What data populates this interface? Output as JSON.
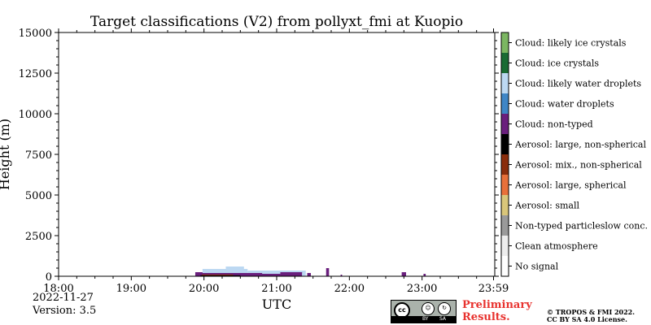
{
  "chart_data": {
    "type": "heatmap",
    "title": "Target classifications (V2) from pollyxt_fmi at Kuopio",
    "xlabel": "UTC",
    "ylabel": "Height (m)",
    "x_ticks": [
      "18:00",
      "19:00",
      "20:00",
      "21:00",
      "22:00",
      "23:00",
      "23:59"
    ],
    "y_ticks": [
      0,
      2500,
      5000,
      7500,
      10000,
      12500,
      15000
    ],
    "ylim": [
      0,
      15000
    ],
    "xlim_hours": [
      18.0,
      24.0
    ],
    "colorbar": [
      {
        "label": "Cloud: likely ice crystals",
        "color": "#7bb661"
      },
      {
        "label": "Cloud: ice crystals",
        "color": "#1a6b33"
      },
      {
        "label": "Cloud: likely water droplets",
        "color": "#bcd8f2"
      },
      {
        "label": "Cloud: water droplets",
        "color": "#3f86c6"
      },
      {
        "label": "Cloud: non-typed",
        "color": "#6a1f7d"
      },
      {
        "label": "Aerosol: large, non-spherical",
        "color": "#000000"
      },
      {
        "label": "Aerosol: mix., non-spherical",
        "color": "#8a2d0c"
      },
      {
        "label": "Aerosol: large, spherical",
        "color": "#e8703a"
      },
      {
        "label": "Aerosol: small",
        "color": "#d9c67a"
      },
      {
        "label": "Non-typed particleslow conc.",
        "color": "#9a9a9a"
      },
      {
        "label": "Clean atmosphere",
        "color": "#ededed"
      },
      {
        "label": "No signal",
        "color": "#ffffff"
      }
    ],
    "classifications": [
      {
        "class": "Cloud: non-typed",
        "t0": 19.88,
        "t1": 20.0,
        "h0": 0,
        "h1": 250
      },
      {
        "class": "Cloud: likely water droplets",
        "t0": 19.98,
        "t1": 20.6,
        "h0": 200,
        "h1": 450
      },
      {
        "class": "Cloud: likely water droplets",
        "t0": 20.3,
        "t1": 20.55,
        "h0": 450,
        "h1": 600
      },
      {
        "class": "Cloud: likely water droplets",
        "t0": 20.6,
        "t1": 21.4,
        "h0": 150,
        "h1": 350
      },
      {
        "class": "Cloud: non-typed",
        "t0": 19.92,
        "t1": 20.8,
        "h0": 20,
        "h1": 200
      },
      {
        "class": "Aerosol: large, non-spherical",
        "t0": 19.95,
        "t1": 20.55,
        "h0": 0,
        "h1": 60
      },
      {
        "class": "Aerosol: mix., non-spherical",
        "t0": 19.97,
        "t1": 20.4,
        "h0": 60,
        "h1": 110
      },
      {
        "class": "Cloud: non-typed",
        "t0": 20.5,
        "t1": 21.05,
        "h0": 0,
        "h1": 150
      },
      {
        "class": "Cloud: non-typed",
        "t0": 21.05,
        "t1": 21.35,
        "h0": 0,
        "h1": 250
      },
      {
        "class": "Cloud: likely water droplets",
        "t0": 21.35,
        "t1": 21.4,
        "h0": 0,
        "h1": 200
      },
      {
        "class": "Cloud: non-typed",
        "t0": 21.42,
        "t1": 21.47,
        "h0": 0,
        "h1": 200
      },
      {
        "class": "Cloud: non-typed",
        "t0": 21.68,
        "t1": 21.72,
        "h0": 0,
        "h1": 500
      },
      {
        "class": "Cloud: non-typed",
        "t0": 21.88,
        "t1": 21.9,
        "h0": 0,
        "h1": 100
      },
      {
        "class": "Cloud: non-typed",
        "t0": 22.72,
        "t1": 22.78,
        "h0": 0,
        "h1": 250
      },
      {
        "class": "Cloud: non-typed",
        "t0": 23.02,
        "t1": 23.05,
        "h0": 0,
        "h1": 150
      }
    ]
  },
  "footer": {
    "date": "2022-11-27",
    "version": "Version: 3.5",
    "preliminary_line1": "Preliminary",
    "preliminary_line2": "Results.",
    "copyright_line1": "© TROPOS & FMI 2022.",
    "copyright_line2": "CC BY SA 4.0 License.",
    "license_badge": {
      "cc": "cc",
      "by": "BY",
      "sa": "SA"
    }
  }
}
